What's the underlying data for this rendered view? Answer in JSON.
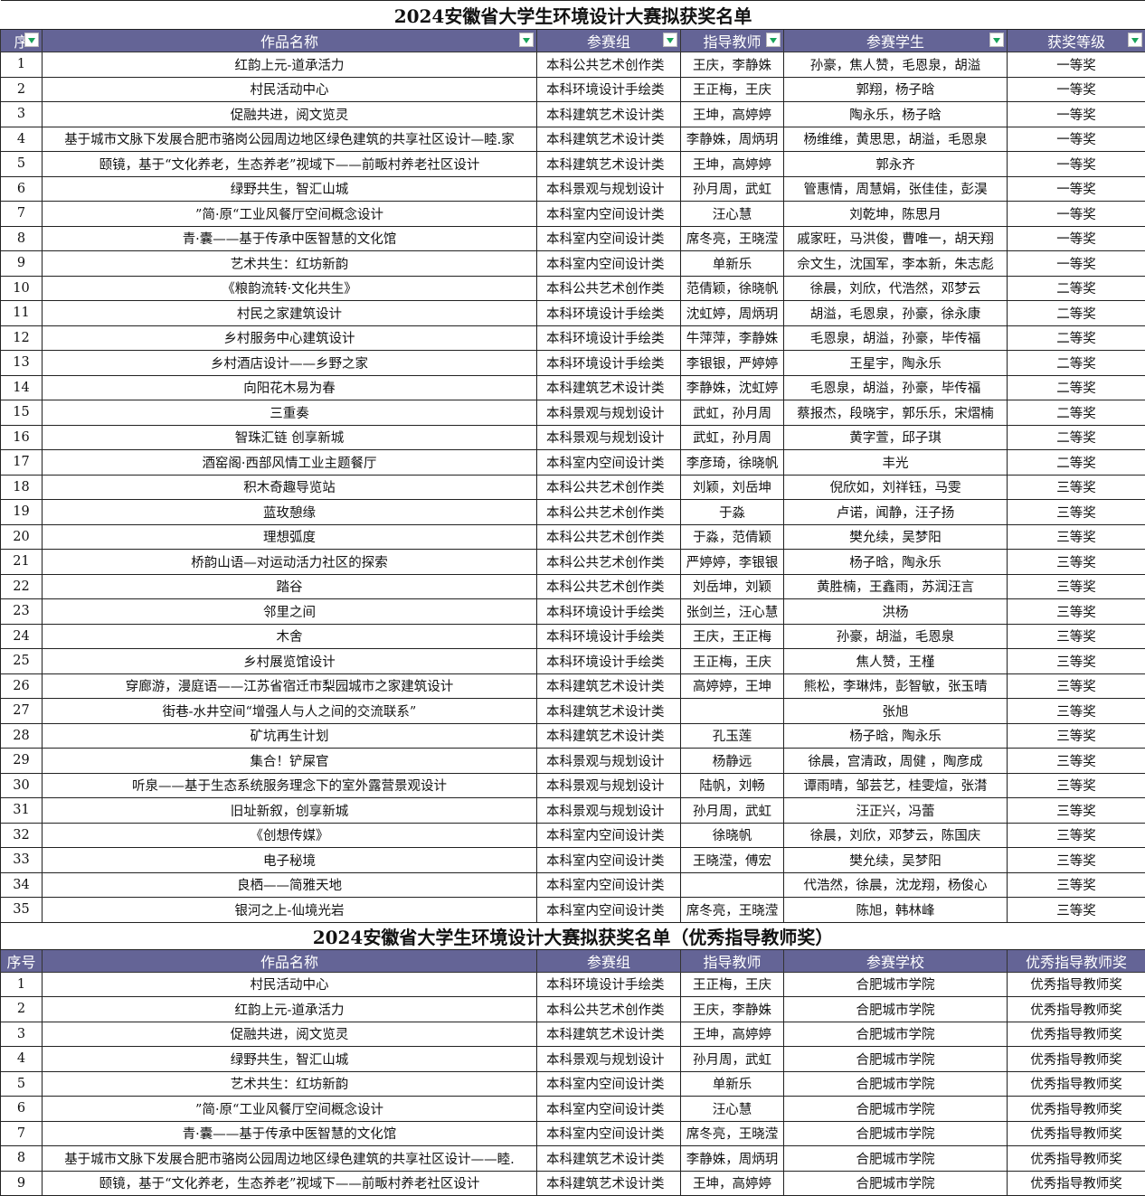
{
  "table1": {
    "title": "2024安徽省大学生环境设计大赛拟获奖名单",
    "headers": [
      "序",
      "作品名称",
      "参赛组",
      "指导教师",
      "参赛学生",
      "获奖等级"
    ],
    "rows": [
      [
        "1",
        "红韵上元-道承活力",
        "本科公共艺术创作类",
        "王庆，李静姝",
        "孙豪，焦人赞，毛恩泉，胡溢",
        "一等奖"
      ],
      [
        "2",
        "村民活动中心",
        "本科环境设计手绘类",
        "王正梅，王庆",
        "郭翔，杨子晗",
        "一等奖"
      ],
      [
        "3",
        "促融共进，阅文览灵",
        "本科建筑艺术设计类",
        "王坤，高婷婷",
        "陶永乐，杨子晗",
        "一等奖"
      ],
      [
        "4",
        "基于城市文脉下发展合肥市骆岗公园周边地区绿色建筑的共享社区设计—睦.家",
        "本科建筑艺术设计类",
        "李静姝，周炳玥",
        "杨维维，黄思思，胡溢，毛恩泉",
        "一等奖"
      ],
      [
        "5",
        "颐镜，基于“文化养老，生态养老”视域下——前畈村养老社区设计",
        "本科建筑艺术设计类",
        "王坤，高婷婷",
        "郭永齐",
        "一等奖"
      ],
      [
        "6",
        "绿野共生，智汇山城",
        "本科景观与规划设计",
        "孙月周，武虹",
        "管惠情，周慧娟，张佳佳，彭淏",
        "一等奖"
      ],
      [
        "7",
        "”简·原“工业风餐厅空间概念设计",
        "本科室内空间设计类",
        "汪心慧",
        "刘乾坤，陈思月",
        "一等奖"
      ],
      [
        "8",
        "青·囊——基于传承中医智慧的文化馆",
        "本科室内空间设计类",
        "席冬亮，王晓滢",
        "戚家旺，马洪俊，曹唯一，胡天翔",
        "一等奖"
      ],
      [
        "9",
        "艺术共生：红坊新韵",
        "本科室内空间设计类",
        "单新乐",
        "佘文生，沈国军，李本新，朱志彪",
        "一等奖"
      ],
      [
        "10",
        "《粮韵流转·文化共生》",
        "本科公共艺术创作类",
        "范倩颖，徐晓帆",
        "徐晨，刘欣，代浩然，邓梦云",
        "二等奖"
      ],
      [
        "11",
        "村民之家建筑设计",
        "本科环境设计手绘类",
        "沈虹婷，周炳玥",
        "胡溢，毛恩泉，孙豪，徐永康",
        "二等奖"
      ],
      [
        "12",
        "乡村服务中心建筑设计",
        "本科环境设计手绘类",
        "牛萍萍，李静姝",
        "毛恩泉，胡溢，孙豪，毕传福",
        "二等奖"
      ],
      [
        "13",
        "乡村酒店设计——乡野之家",
        "本科环境设计手绘类",
        "李银银，严婷婷",
        "王星宇，陶永乐",
        "二等奖"
      ],
      [
        "14",
        "向阳花木易为春",
        "本科建筑艺术设计类",
        "李静姝，沈虹婷",
        "毛恩泉，胡溢，孙豪，毕传福",
        "二等奖"
      ],
      [
        "15",
        "三重奏",
        "本科景观与规划设计",
        "武虹，孙月周",
        "蔡报杰，段晓宇，郭乐乐，宋熠楠",
        "二等奖"
      ],
      [
        "16",
        "智珠汇链 创享新城",
        "本科景观与规划设计",
        "武虹，孙月周",
        "黄字萱，邱子琪",
        "二等奖"
      ],
      [
        "17",
        "酒窑阁·西部风情工业主题餐厅",
        "本科室内空间设计类",
        "李彦琦，徐晓帆",
        "丰光",
        "二等奖"
      ],
      [
        "18",
        "积木奇趣导览站",
        "本科公共艺术创作类",
        "刘颖，刘岳坤",
        "倪欣如，刘祥钰，马雯",
        "三等奖"
      ],
      [
        "19",
        "蓝玫憩缘",
        "本科公共艺术创作类",
        "于淼",
        "卢诺，闻静，汪子扬",
        "三等奖"
      ],
      [
        "20",
        "理想弧度",
        "本科公共艺术创作类",
        "于淼，范倩颖",
        "樊允续，吴梦阳",
        "三等奖"
      ],
      [
        "21",
        "桥韵山语—对运动活力社区的探索",
        "本科公共艺术创作类",
        "严婷婷，李银银",
        "杨子晗，陶永乐",
        "三等奖"
      ],
      [
        "22",
        "踏谷",
        "本科公共艺术创作类",
        "刘岳坤，刘颖",
        "黄胜楠，王鑫雨，苏润汪言",
        "三等奖"
      ],
      [
        "23",
        "邻里之间",
        "本科环境设计手绘类",
        "张剑兰，汪心慧",
        "洪杨",
        "三等奖"
      ],
      [
        "24",
        "木舍",
        "本科环境设计手绘类",
        "王庆，王正梅",
        "孙豪，胡溢，毛恩泉",
        "三等奖"
      ],
      [
        "25",
        "乡村展览馆设计",
        "本科环境设计手绘类",
        "王正梅，王庆",
        "焦人赞，王槿",
        "三等奖"
      ],
      [
        "26",
        "穿廊游，漫庭语——江苏省宿迁市梨园城市之家建筑设计",
        "本科建筑艺术设计类",
        "高婷婷，王坤",
        "熊松，李琳炜，彭智敏，张玉晴",
        "三等奖"
      ],
      [
        "27",
        "街巷-水井空间“增强人与人之间的交流联系”",
        "本科建筑艺术设计类",
        "",
        "张旭",
        "三等奖"
      ],
      [
        "28",
        "矿坑再生计划",
        "本科建筑艺术设计类",
        "孔玉莲",
        "杨子晗，陶永乐",
        "三等奖"
      ],
      [
        "29",
        "集合！铲屎官",
        "本科景观与规划设计",
        "杨静远",
        "徐晨，宫清政，周健 ，陶彦成",
        "三等奖"
      ],
      [
        "30",
        "听泉——基于生态系统服务理念下的室外露营景观设计",
        "本科景观与规划设计",
        "陆帆，刘畅",
        "谭雨晴，邹芸艺，桂雯煊，张潸",
        "三等奖"
      ],
      [
        "31",
        "旧址新叙，创享新城",
        "本科景观与规划设计",
        "孙月周，武虹",
        "汪正兴，冯蕾",
        "三等奖"
      ],
      [
        "32",
        "《创想传媒》",
        "本科室内空间设计类",
        "徐晓帆",
        "徐晨，刘欣，邓梦云，陈国庆",
        "三等奖"
      ],
      [
        "33",
        "电子秘境",
        "本科室内空间设计类",
        "王晓滢，傅宏",
        "樊允续，吴梦阳",
        "三等奖"
      ],
      [
        "34",
        "良栖——简雅天地",
        "本科室内空间设计类",
        "",
        "代浩然，徐晨，沈龙翔，杨俊心",
        "三等奖"
      ],
      [
        "35",
        "银河之上-仙境光岩",
        "本科室内空间设计类",
        "席冬亮，王晓滢",
        "陈旭，韩林峰",
        "三等奖"
      ]
    ]
  },
  "table2": {
    "title": "2024安徽省大学生环境设计大赛拟获奖名单（优秀指导教师奖）",
    "headers": [
      "序号",
      "作品名称",
      "参赛组",
      "指导教师",
      "参赛学校",
      "优秀指导教师奖"
    ],
    "rows": [
      [
        "1",
        "村民活动中心",
        "本科环境设计手绘类",
        "王正梅，王庆",
        "合肥城市学院",
        "优秀指导教师奖"
      ],
      [
        "2",
        "红韵上元-道承活力",
        "本科公共艺术创作类",
        "王庆，李静姝",
        "合肥城市学院",
        "优秀指导教师奖"
      ],
      [
        "3",
        "促融共进，阅文览灵",
        "本科建筑艺术设计类",
        "王坤，高婷婷",
        "合肥城市学院",
        "优秀指导教师奖"
      ],
      [
        "4",
        "绿野共生，智汇山城",
        "本科景观与规划设计",
        "孙月周，武虹",
        "合肥城市学院",
        "优秀指导教师奖"
      ],
      [
        "5",
        "艺术共生：红坊新韵",
        "本科室内空间设计类",
        "单新乐",
        "合肥城市学院",
        "优秀指导教师奖"
      ],
      [
        "6",
        "”简·原“工业风餐厅空间概念设计",
        "本科室内空间设计类",
        "汪心慧",
        "合肥城市学院",
        "优秀指导教师奖"
      ],
      [
        "7",
        "青·囊——基于传承中医智慧的文化馆",
        "本科室内空间设计类",
        "席冬亮，王晓滢",
        "合肥城市学院",
        "优秀指导教师奖"
      ],
      [
        "8",
        "基于城市文脉下发展合肥市骆岗公园周边地区绿色建筑的共享社区设计——睦.",
        "本科建筑艺术设计类",
        "李静姝，周炳玥",
        "合肥城市学院",
        "优秀指导教师奖"
      ],
      [
        "9",
        "颐镜，基于“文化养老，生态养老”视域下——前畈村养老社区设计",
        "本科建筑艺术设计类",
        "王坤，高婷婷",
        "合肥城市学院",
        "优秀指导教师奖"
      ]
    ]
  },
  "colors": {
    "header_bg": "#646496",
    "filter_arrow": "#19a35a"
  }
}
